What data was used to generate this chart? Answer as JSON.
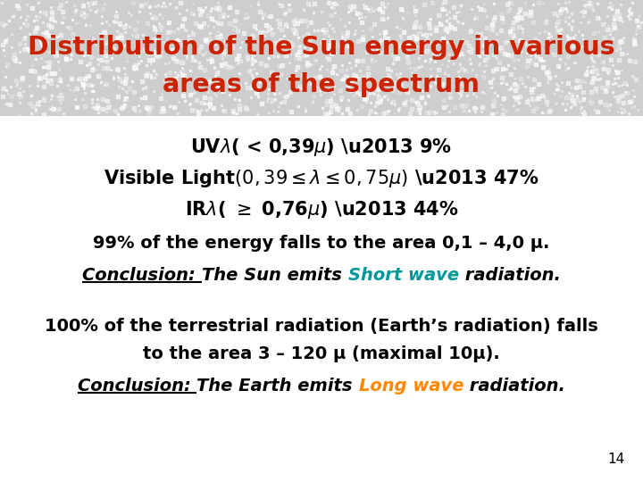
{
  "title_line1": "Distribution of the Sun energy in various",
  "title_line2": "areas of the spectrum",
  "title_color": "#cc2200",
  "title_bg_color": "#cecece",
  "body_bg_color": "#ffffff",
  "slide_number": "14",
  "conclusion1_color": "#009999",
  "conclusion2_color": "#ff8800"
}
